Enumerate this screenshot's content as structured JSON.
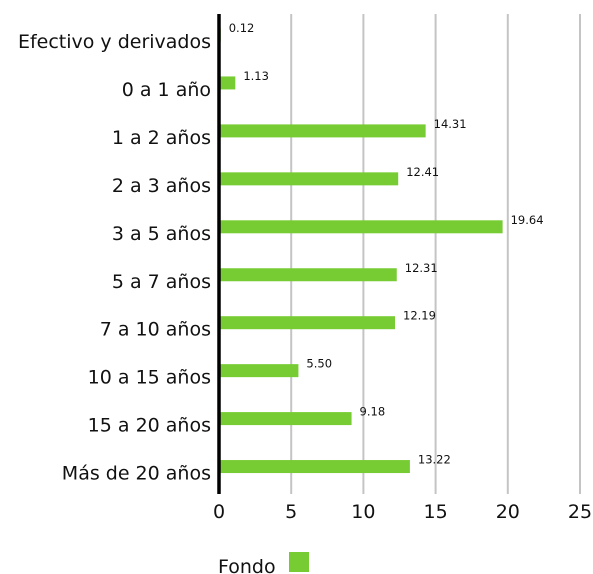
{
  "chart_data": {
    "type": "bar",
    "orientation": "horizontal",
    "categories": [
      "Efectivo y derivados",
      "0 a 1 año",
      "1 a 2 años",
      "2 a 3 años",
      "3 a 5 años",
      "5 a 7 años",
      "7 a 10 años",
      "10 a 15 años",
      "15 a 20 años",
      "Más de 20 años"
    ],
    "series": [
      {
        "name": "Fondo",
        "color": "#77cc33",
        "values": [
          0.12,
          1.13,
          14.31,
          12.41,
          19.64,
          12.31,
          12.19,
          5.5,
          9.18,
          13.22
        ],
        "value_labels": [
          "0.12",
          "1.13",
          "14.31",
          "12.41",
          "19.64",
          "12.31",
          "12.19",
          "5.50",
          "9.18",
          "13.22"
        ]
      }
    ],
    "xlim": [
      0,
      25
    ],
    "xticks": [
      0,
      5,
      10,
      15,
      20,
      25
    ],
    "grid": "vertical",
    "legend_position": "bottom"
  }
}
